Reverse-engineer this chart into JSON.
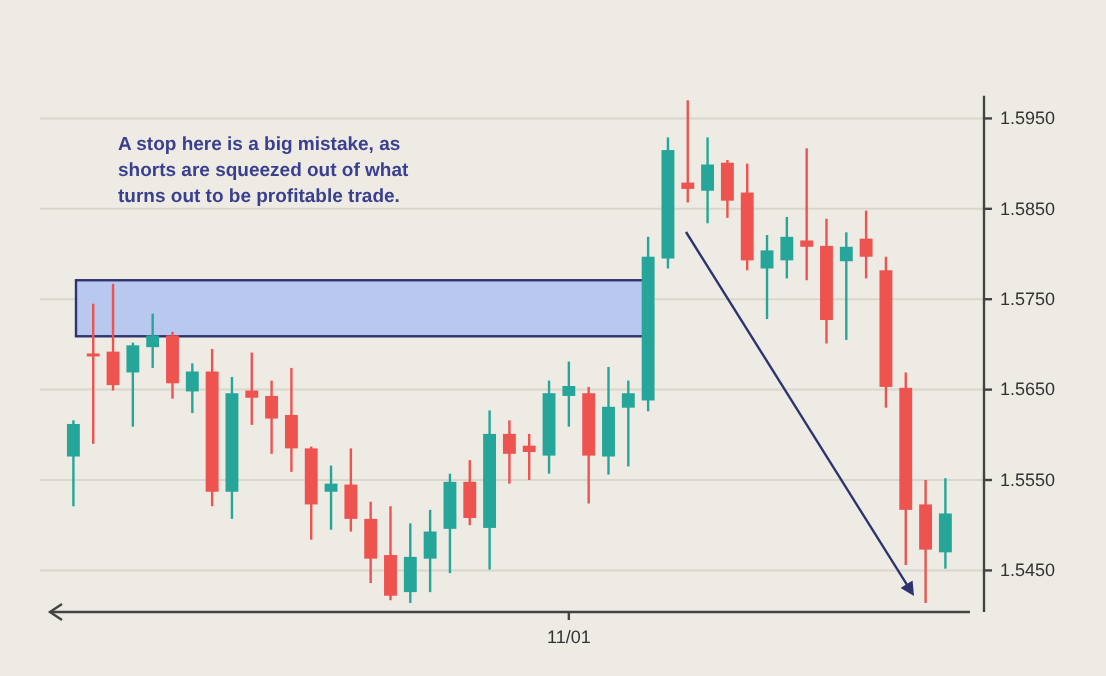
{
  "chart_data": {
    "type": "candlestick",
    "annotations": [
      "A stop here is a big mistake, as\nshorts are squeezed out of what\nturns out to be profitable trade."
    ],
    "categories": [
      null,
      null,
      null,
      null,
      null,
      null,
      null,
      null,
      null,
      null,
      null,
      null,
      null,
      null,
      null,
      null,
      null,
      null,
      null,
      null,
      null,
      null,
      null,
      null,
      null,
      "11/01",
      null,
      null,
      null,
      null,
      null,
      null,
      null,
      null,
      null,
      null,
      null,
      null,
      null,
      null,
      null,
      null,
      null,
      null,
      null
    ],
    "ohlc": [
      [
        1.5576,
        1.5616,
        1.5521,
        1.5612
      ],
      [
        1.569,
        1.5745,
        1.559,
        1.5687
      ],
      [
        1.5692,
        1.5767,
        1.5649,
        1.5655
      ],
      [
        1.5669,
        1.5702,
        1.5609,
        1.5699
      ],
      [
        1.5697,
        1.5734,
        1.5674,
        1.571
      ],
      [
        1.571,
        1.5714,
        1.564,
        1.5657
      ],
      [
        1.5648,
        1.5679,
        1.5624,
        1.567
      ],
      [
        1.567,
        1.5695,
        1.5521,
        1.5537
      ],
      [
        1.5537,
        1.5664,
        1.5507,
        1.5646
      ],
      [
        1.5649,
        1.5691,
        1.5611,
        1.5641
      ],
      [
        1.5643,
        1.566,
        1.5579,
        1.5618
      ],
      [
        1.5622,
        1.5674,
        1.5559,
        1.5585
      ],
      [
        1.5585,
        1.5587,
        1.5484,
        1.5523
      ],
      [
        1.5537,
        1.5566,
        1.5495,
        1.5546
      ],
      [
        1.5545,
        1.5585,
        1.5493,
        1.5507
      ],
      [
        1.5507,
        1.5526,
        1.5436,
        1.5463
      ],
      [
        1.5467,
        1.5521,
        1.5417,
        1.5422
      ],
      [
        1.5426,
        1.5502,
        1.5414,
        1.5465
      ],
      [
        1.5463,
        1.5517,
        1.5426,
        1.5493
      ],
      [
        1.5496,
        1.5557,
        1.5447,
        1.5548
      ],
      [
        1.5548,
        1.5572,
        1.55,
        1.5508
      ],
      [
        1.5497,
        1.5627,
        1.5451,
        1.5601
      ],
      [
        1.5601,
        1.5616,
        1.5546,
        1.5579
      ],
      [
        1.5588,
        1.5601,
        1.555,
        1.5581
      ],
      [
        1.5577,
        1.566,
        1.5557,
        1.5646
      ],
      [
        1.5643,
        1.5681,
        1.5609,
        1.5654
      ],
      [
        1.5646,
        1.5653,
        1.5524,
        1.5577
      ],
      [
        1.5576,
        1.5675,
        1.5556,
        1.5631
      ],
      [
        1.563,
        1.566,
        1.5565,
        1.5646
      ],
      [
        1.5638,
        1.5819,
        1.5626,
        1.5797
      ],
      [
        1.5795,
        1.5929,
        1.5784,
        1.5915
      ],
      [
        1.5879,
        1.597,
        1.5857,
        1.5872
      ],
      [
        1.587,
        1.5929,
        1.5834,
        1.5899
      ],
      [
        1.5901,
        1.5904,
        1.584,
        1.5859
      ],
      [
        1.5868,
        1.59,
        1.5782,
        1.5793
      ],
      [
        1.5784,
        1.5821,
        1.5728,
        1.5804
      ],
      [
        1.5793,
        1.5841,
        1.5773,
        1.5819
      ],
      [
        1.5815,
        1.5917,
        1.5771,
        1.5808
      ],
      [
        1.5809,
        1.5839,
        1.5701,
        1.5727
      ],
      [
        1.5792,
        1.5824,
        1.5705,
        1.5808
      ],
      [
        1.5817,
        1.5848,
        1.5773,
        1.5797
      ],
      [
        1.5782,
        1.5797,
        1.563,
        1.5653
      ],
      [
        1.5652,
        1.5669,
        1.5456,
        1.5517
      ],
      [
        1.5523,
        1.555,
        1.5414,
        1.5473
      ],
      [
        1.547,
        1.5552,
        1.5452,
        1.5513
      ]
    ],
    "colors": [
      "#26a69a",
      "#ef5350",
      "#ef5350",
      "#26a69a",
      "#26a69a",
      "#ef5350",
      "#26a69a",
      "#ef5350",
      "#26a69a",
      "#ef5350",
      "#ef5350",
      "#ef5350",
      "#ef5350",
      "#26a69a",
      "#ef5350",
      "#ef5350",
      "#ef5350",
      "#26a69a",
      "#26a69a",
      "#26a69a",
      "#ef5350",
      "#26a69a",
      "#ef5350",
      "#ef5350",
      "#26a69a",
      "#26a69a",
      "#ef5350",
      "#26a69a",
      "#26a69a",
      "#26a69a",
      "#26a69a",
      "#ef5350",
      "#26a69a",
      "#ef5350",
      "#ef5350",
      "#26a69a",
      "#26a69a",
      "#ef5350",
      "#ef5350",
      "#26a69a",
      "#ef5350",
      "#ef5350",
      "#ef5350",
      "#ef5350",
      "#26a69a"
    ],
    "bands": [
      {
        "axis": "y",
        "from": 1.5709,
        "to": 1.5771,
        "color": "#b9c8ee"
      }
    ],
    "ylim": [
      1.5404,
      1.5975
    ],
    "yticks": [
      {
        "value": 1.545,
        "label": "1.5450"
      },
      {
        "value": 1.555,
        "label": "1.5550"
      },
      {
        "value": 1.565,
        "label": "1.5650"
      },
      {
        "value": 1.575,
        "label": "1.5750"
      },
      {
        "value": 1.585,
        "label": "1.5850"
      },
      {
        "value": 1.595,
        "label": "1.5950"
      }
    ],
    "grid": "y"
  }
}
